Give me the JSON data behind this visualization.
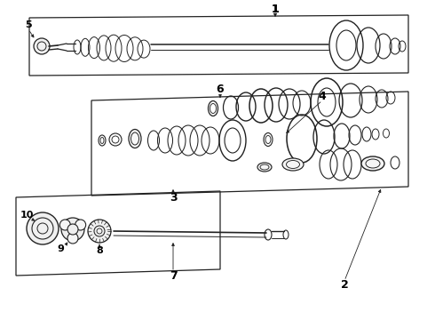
{
  "bg_color": "#ffffff",
  "lc": "#222222",
  "fig_w": 4.9,
  "fig_h": 3.6,
  "dpi": 100
}
